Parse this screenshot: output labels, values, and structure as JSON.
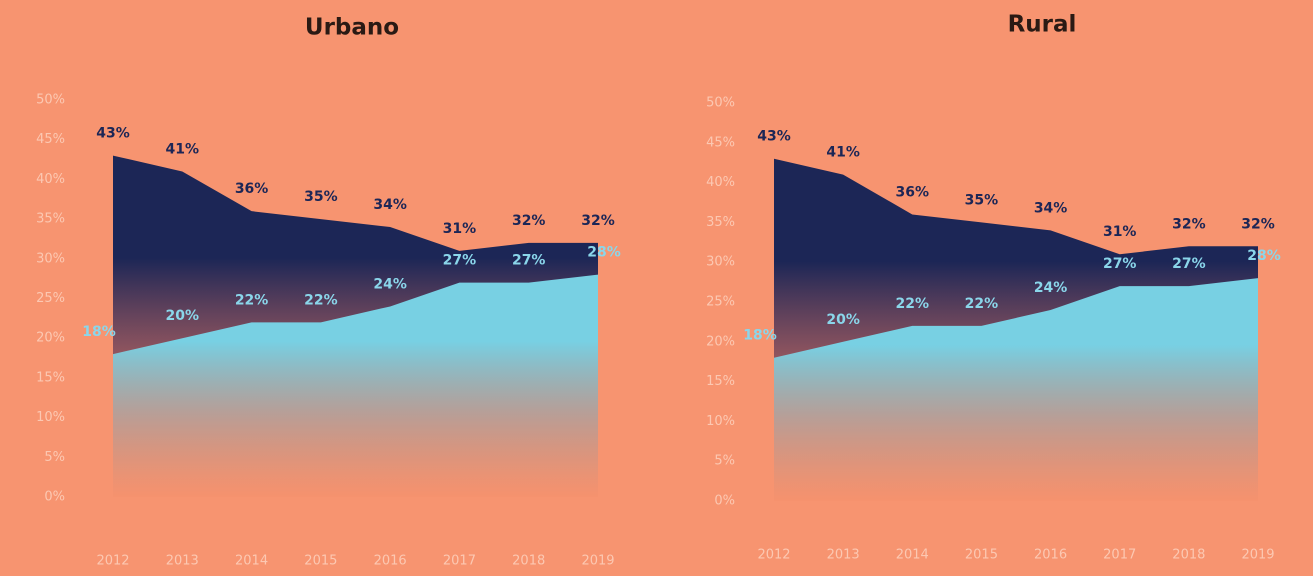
{
  "chart_data": [
    {
      "type": "area",
      "title": "Urbano",
      "categories": [
        "2012",
        "2013",
        "2014",
        "2015",
        "2016",
        "2017",
        "2018",
        "2019"
      ],
      "series": [
        {
          "color": "#1c2656",
          "values": [
            43,
            41,
            36,
            35,
            34,
            31,
            32,
            32
          ],
          "value_labels": [
            "43%",
            "41%",
            "36%",
            "35%",
            "34%",
            "31%",
            "32%",
            "32%"
          ]
        },
        {
          "color": "#78d0e3",
          "values": [
            18,
            20,
            22,
            22,
            24,
            27,
            27,
            28
          ],
          "value_labels": [
            "18%",
            "20%",
            "22%",
            "22%",
            "24%",
            "27%",
            "27%",
            "28%"
          ]
        }
      ],
      "ylim": [
        0,
        50
      ],
      "yticks": [
        {
          "value": 0,
          "label": "0%"
        },
        {
          "value": 5,
          "label": "5%"
        },
        {
          "value": 10,
          "label": "10%"
        },
        {
          "value": 15,
          "label": "15%"
        },
        {
          "value": 20,
          "label": "20%"
        },
        {
          "value": 25,
          "label": "25%"
        },
        {
          "value": 30,
          "label": "30%"
        },
        {
          "value": 35,
          "label": "35%"
        },
        {
          "value": 40,
          "label": "40%"
        },
        {
          "value": 45,
          "label": "45%"
        },
        {
          "value": 50,
          "label": "50%"
        }
      ]
    },
    {
      "type": "area",
      "title": "Rural",
      "categories": [
        "2012",
        "2013",
        "2014",
        "2015",
        "2016",
        "2017",
        "2018",
        "2019"
      ],
      "series": [
        {
          "color": "#1c2656",
          "values": [
            43,
            41,
            36,
            35,
            34,
            31,
            32,
            32
          ],
          "value_labels": [
            "43%",
            "41%",
            "36%",
            "35%",
            "34%",
            "31%",
            "32%",
            "32%"
          ]
        },
        {
          "color": "#78d0e3",
          "values": [
            18,
            20,
            22,
            22,
            24,
            27,
            27,
            28
          ],
          "value_labels": [
            "18%",
            "20%",
            "22%",
            "22%",
            "24%",
            "27%",
            "27%",
            "28%"
          ]
        }
      ],
      "ylim": [
        0,
        50
      ],
      "yticks": [
        {
          "value": 0,
          "label": "0%"
        },
        {
          "value": 5,
          "label": "5%"
        },
        {
          "value": 10,
          "label": "10%"
        },
        {
          "value": 15,
          "label": "15%"
        },
        {
          "value": 20,
          "label": "20%"
        },
        {
          "value": 25,
          "label": "25%"
        },
        {
          "value": 30,
          "label": "30%"
        },
        {
          "value": 35,
          "label": "35%"
        },
        {
          "value": 40,
          "label": "40%"
        },
        {
          "value": 45,
          "label": "45%"
        },
        {
          "value": 50,
          "label": "50%"
        }
      ]
    }
  ]
}
